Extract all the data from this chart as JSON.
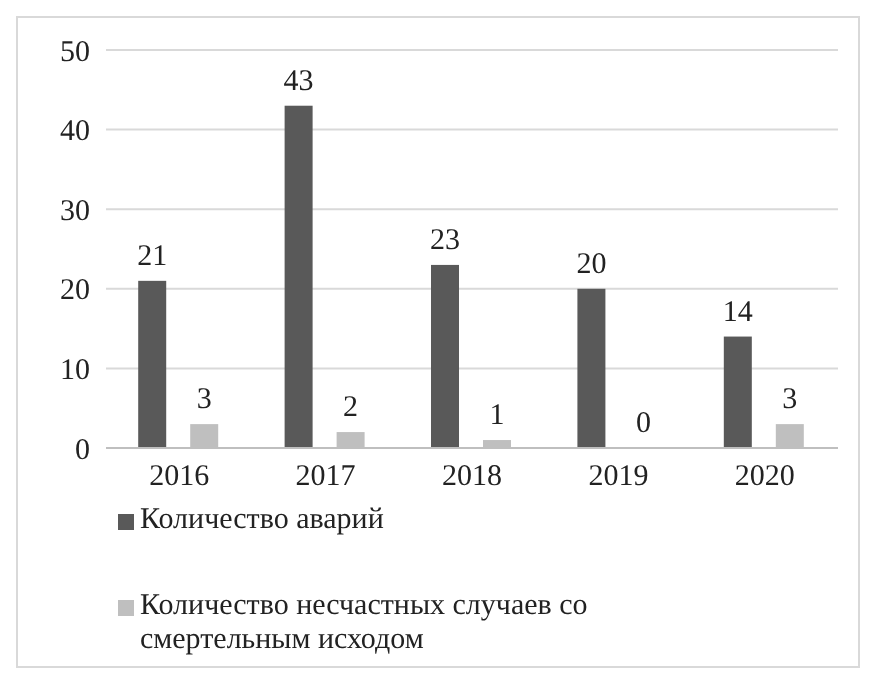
{
  "chart_data": {
    "type": "bar",
    "categories": [
      "2016",
      "2017",
      "2018",
      "2019",
      "2020"
    ],
    "series": [
      {
        "name": "Количество аварий",
        "color": "#595959",
        "values": [
          21,
          43,
          23,
          20,
          14
        ]
      },
      {
        "name": "Количество несчастных случаев со смертельным исходом",
        "color": "#bfbfbf",
        "values": [
          3,
          2,
          1,
          0,
          3
        ]
      }
    ],
    "ylim": [
      0,
      50
    ],
    "yticks": [
      0,
      10,
      20,
      30,
      40,
      50
    ],
    "grid": "y",
    "legend": "bottom",
    "data_labels": true
  }
}
